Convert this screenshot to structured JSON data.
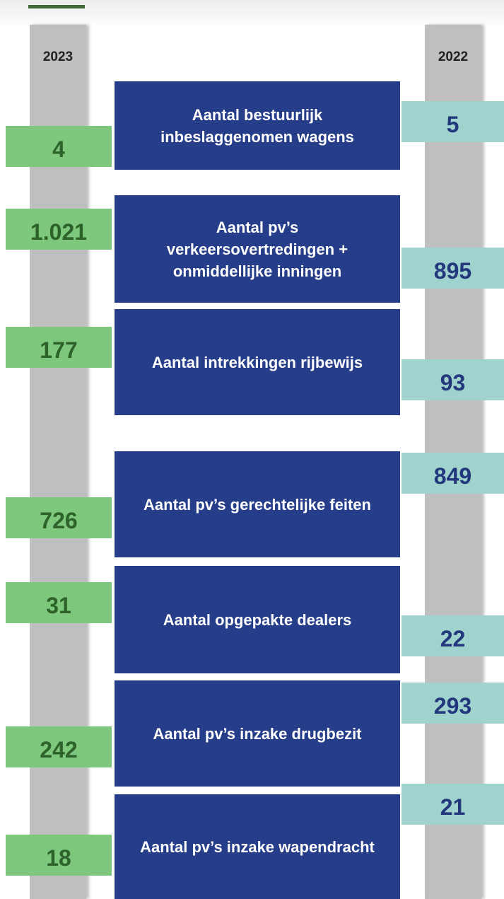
{
  "years": {
    "left": "2023",
    "right": "2022"
  },
  "items": [
    {
      "label": "Aantal bestuurlijk inbeslaggenomen wagens",
      "value_2023": "4",
      "value_2022": "5"
    },
    {
      "label": "Aantal pv’s verkeersovertredingen + onmiddellijke inningen",
      "value_2023": "1.021",
      "value_2022": "895"
    },
    {
      "label": "Aantal intrekkingen rijbewijs",
      "value_2023": "177",
      "value_2022": "93"
    },
    {
      "label": "Aantal pv’s gerechtelijke feiten",
      "value_2023": "726",
      "value_2022": "849"
    },
    {
      "label": "Aantal opgepakte dealers",
      "value_2023": "31",
      "value_2022": "22"
    },
    {
      "label": "Aantal pv’s inzake drugbezit",
      "value_2023": "242",
      "value_2022": "293"
    },
    {
      "label": "Aantal pv’s inzake wapendracht",
      "value_2023": "18",
      "value_2022": "21"
    }
  ]
}
